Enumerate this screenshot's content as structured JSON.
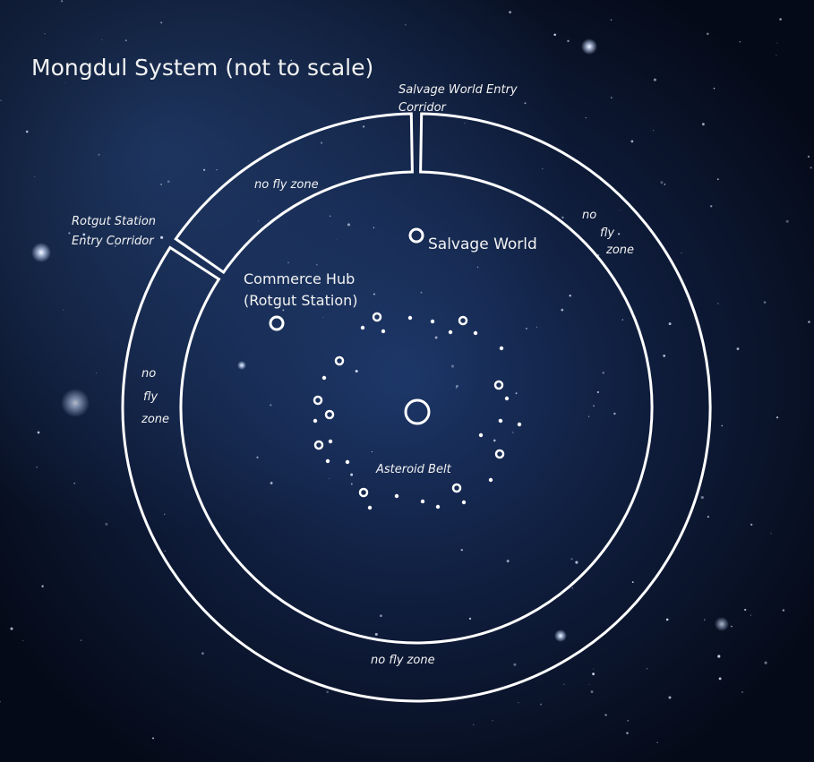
{
  "title": "Mongdul System (not to scale)",
  "corridors": [
    {
      "lines": [
        "Salvage World Entry",
        "Corridor"
      ]
    },
    {
      "lines": [
        "Rotgut Station",
        "Entry Corridor"
      ]
    }
  ],
  "zones": [
    {
      "lines": [
        "no fly zone"
      ]
    },
    {
      "lines": [
        "no",
        "fly",
        "zone"
      ]
    },
    {
      "lines": [
        "no",
        "fly",
        "zone"
      ]
    },
    {
      "lines": [
        "no fly zone"
      ]
    }
  ],
  "bodies": [
    {
      "lines": [
        "Salvage World"
      ]
    },
    {
      "lines": [
        "Commerce Hub",
        "(Rotgut Station)"
      ]
    },
    {
      "lines": [
        "Asteroid Belt"
      ]
    }
  ]
}
